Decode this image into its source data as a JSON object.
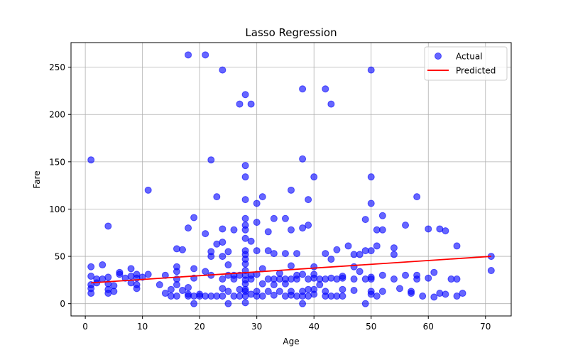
{
  "chart_data": {
    "type": "scatter",
    "title": "Lasso Regression",
    "xlabel": "Age",
    "ylabel": "Fare",
    "xlim": [
      -2.5,
      74.5
    ],
    "ylim": [
      -13,
      276
    ],
    "xticks": [
      0,
      10,
      20,
      30,
      40,
      50,
      60,
      70
    ],
    "yticks": [
      0,
      50,
      100,
      150,
      200,
      250
    ],
    "grid": true,
    "legend_position": "top-right",
    "series": [
      {
        "name": "Actual",
        "kind": "scatter",
        "color": "#0000ff",
        "opacity": 0.6,
        "points": [
          [
            1,
            152
          ],
          [
            1,
            39
          ],
          [
            1,
            29
          ],
          [
            1,
            20
          ],
          [
            1,
            16
          ],
          [
            1,
            11
          ],
          [
            2,
            26
          ],
          [
            2,
            22
          ],
          [
            3,
            41
          ],
          [
            3,
            26
          ],
          [
            4,
            82
          ],
          [
            4,
            28
          ],
          [
            4,
            21
          ],
          [
            4,
            15
          ],
          [
            4,
            11
          ],
          [
            5,
            19
          ],
          [
            5,
            13
          ],
          [
            6,
            33
          ],
          [
            6,
            31
          ],
          [
            7,
            27
          ],
          [
            8,
            37
          ],
          [
            8,
            29
          ],
          [
            8,
            22
          ],
          [
            9,
            31
          ],
          [
            9,
            27
          ],
          [
            9,
            20
          ],
          [
            9,
            16
          ],
          [
            10,
            28
          ],
          [
            11,
            120
          ],
          [
            11,
            31
          ],
          [
            13,
            20
          ],
          [
            14,
            30
          ],
          [
            14,
            11
          ],
          [
            15,
            15
          ],
          [
            15,
            8
          ],
          [
            16,
            58
          ],
          [
            16,
            39
          ],
          [
            16,
            34
          ],
          [
            16,
            26
          ],
          [
            16,
            20
          ],
          [
            16,
            8
          ],
          [
            17,
            57
          ],
          [
            17,
            14
          ],
          [
            18,
            263
          ],
          [
            18,
            80
          ],
          [
            18,
            17
          ],
          [
            18,
            10
          ],
          [
            18,
            8
          ],
          [
            19,
            91
          ],
          [
            19,
            37
          ],
          [
            19,
            27
          ],
          [
            19,
            8
          ],
          [
            19,
            0
          ],
          [
            20,
            10
          ],
          [
            20,
            8
          ],
          [
            21,
            263
          ],
          [
            21,
            74
          ],
          [
            21,
            34
          ],
          [
            21,
            8
          ],
          [
            22,
            152
          ],
          [
            22,
            55
          ],
          [
            22,
            50
          ],
          [
            22,
            30
          ],
          [
            22,
            8
          ],
          [
            23,
            113
          ],
          [
            23,
            63
          ],
          [
            23,
            8
          ],
          [
            24,
            247
          ],
          [
            24,
            79
          ],
          [
            24,
            65
          ],
          [
            24,
            50
          ],
          [
            24,
            26
          ],
          [
            24,
            16
          ],
          [
            24,
            8
          ],
          [
            25,
            55
          ],
          [
            25,
            41
          ],
          [
            25,
            30
          ],
          [
            25,
            13
          ],
          [
            25,
            0
          ],
          [
            26,
            78
          ],
          [
            26,
            30
          ],
          [
            26,
            26
          ],
          [
            26,
            8
          ],
          [
            27,
            211
          ],
          [
            27,
            30
          ],
          [
            27,
            15
          ],
          [
            27,
            8
          ],
          [
            28,
            221
          ],
          [
            28,
            146
          ],
          [
            28,
            134
          ],
          [
            28,
            110
          ],
          [
            28,
            90
          ],
          [
            28,
            83
          ],
          [
            28,
            78
          ],
          [
            28,
            69
          ],
          [
            28,
            56
          ],
          [
            28,
            52
          ],
          [
            28,
            47
          ],
          [
            28,
            42
          ],
          [
            28,
            35
          ],
          [
            28,
            30
          ],
          [
            28,
            25
          ],
          [
            28,
            21
          ],
          [
            28,
            15
          ],
          [
            28,
            13
          ],
          [
            28,
            8
          ],
          [
            28,
            1
          ],
          [
            29,
            211
          ],
          [
            29,
            66
          ],
          [
            29,
            30
          ],
          [
            29,
            26
          ],
          [
            29,
            10
          ],
          [
            30,
            106
          ],
          [
            30,
            86
          ],
          [
            30,
            56
          ],
          [
            30,
            31
          ],
          [
            30,
            13
          ],
          [
            30,
            8
          ],
          [
            31,
            113
          ],
          [
            31,
            37
          ],
          [
            31,
            21
          ],
          [
            31,
            8
          ],
          [
            32,
            76
          ],
          [
            32,
            56
          ],
          [
            32,
            26
          ],
          [
            32,
            13
          ],
          [
            33,
            90
          ],
          [
            33,
            53
          ],
          [
            33,
            26
          ],
          [
            33,
            20
          ],
          [
            33,
            9
          ],
          [
            34,
            32
          ],
          [
            34,
            26
          ],
          [
            34,
            13
          ],
          [
            35,
            90
          ],
          [
            35,
            53
          ],
          [
            35,
            26
          ],
          [
            35,
            21
          ],
          [
            35,
            8
          ],
          [
            36,
            120
          ],
          [
            36,
            78
          ],
          [
            36,
            40
          ],
          [
            36,
            26
          ],
          [
            36,
            13
          ],
          [
            36,
            9
          ],
          [
            37,
            53
          ],
          [
            37,
            30
          ],
          [
            37,
            26
          ],
          [
            37,
            8
          ],
          [
            38,
            227
          ],
          [
            38,
            153
          ],
          [
            38,
            80
          ],
          [
            38,
            31
          ],
          [
            38,
            13
          ],
          [
            38,
            8
          ],
          [
            38,
            0
          ],
          [
            39,
            110
          ],
          [
            39,
            83
          ],
          [
            39,
            26
          ],
          [
            39,
            15
          ],
          [
            39,
            8
          ],
          [
            40,
            134
          ],
          [
            40,
            39
          ],
          [
            40,
            31
          ],
          [
            40,
            27
          ],
          [
            40,
            15
          ],
          [
            40,
            10
          ],
          [
            41,
            26
          ],
          [
            41,
            20
          ],
          [
            42,
            227
          ],
          [
            42,
            53
          ],
          [
            42,
            26
          ],
          [
            42,
            13
          ],
          [
            42,
            8
          ],
          [
            43,
            211
          ],
          [
            43,
            47
          ],
          [
            43,
            27
          ],
          [
            43,
            8
          ],
          [
            44,
            57
          ],
          [
            44,
            26
          ],
          [
            44,
            8
          ],
          [
            45,
            29
          ],
          [
            45,
            27
          ],
          [
            45,
            15
          ],
          [
            45,
            8
          ],
          [
            46,
            61
          ],
          [
            47,
            52
          ],
          [
            47,
            39
          ],
          [
            47,
            26
          ],
          [
            47,
            14
          ],
          [
            48,
            52
          ],
          [
            48,
            34
          ],
          [
            49,
            89
          ],
          [
            49,
            56
          ],
          [
            49,
            26
          ],
          [
            49,
            0
          ],
          [
            50,
            247
          ],
          [
            50,
            134
          ],
          [
            50,
            106
          ],
          [
            50,
            56
          ],
          [
            50,
            28
          ],
          [
            50,
            26
          ],
          [
            50,
            13
          ],
          [
            50,
            10
          ],
          [
            51,
            78
          ],
          [
            51,
            61
          ],
          [
            51,
            8
          ],
          [
            52,
            93
          ],
          [
            52,
            78
          ],
          [
            52,
            30
          ],
          [
            52,
            13
          ],
          [
            54,
            59
          ],
          [
            54,
            52
          ],
          [
            54,
            26
          ],
          [
            55,
            16
          ],
          [
            56,
            83
          ],
          [
            56,
            30
          ],
          [
            57,
            13
          ],
          [
            57,
            11
          ],
          [
            58,
            113
          ],
          [
            58,
            30
          ],
          [
            58,
            26
          ],
          [
            59,
            8
          ],
          [
            60,
            79
          ],
          [
            60,
            27
          ],
          [
            61,
            33
          ],
          [
            61,
            7
          ],
          [
            62,
            79
          ],
          [
            62,
            11
          ],
          [
            63,
            77
          ],
          [
            63,
            10
          ],
          [
            64,
            26
          ],
          [
            65,
            61
          ],
          [
            65,
            26
          ],
          [
            65,
            8
          ],
          [
            66,
            11
          ],
          [
            71,
            50
          ],
          [
            71,
            35
          ]
        ]
      },
      {
        "name": "Predicted",
        "kind": "line",
        "color": "#ff0000",
        "points": [
          [
            1,
            22
          ],
          [
            71,
            50
          ]
        ]
      }
    ]
  }
}
